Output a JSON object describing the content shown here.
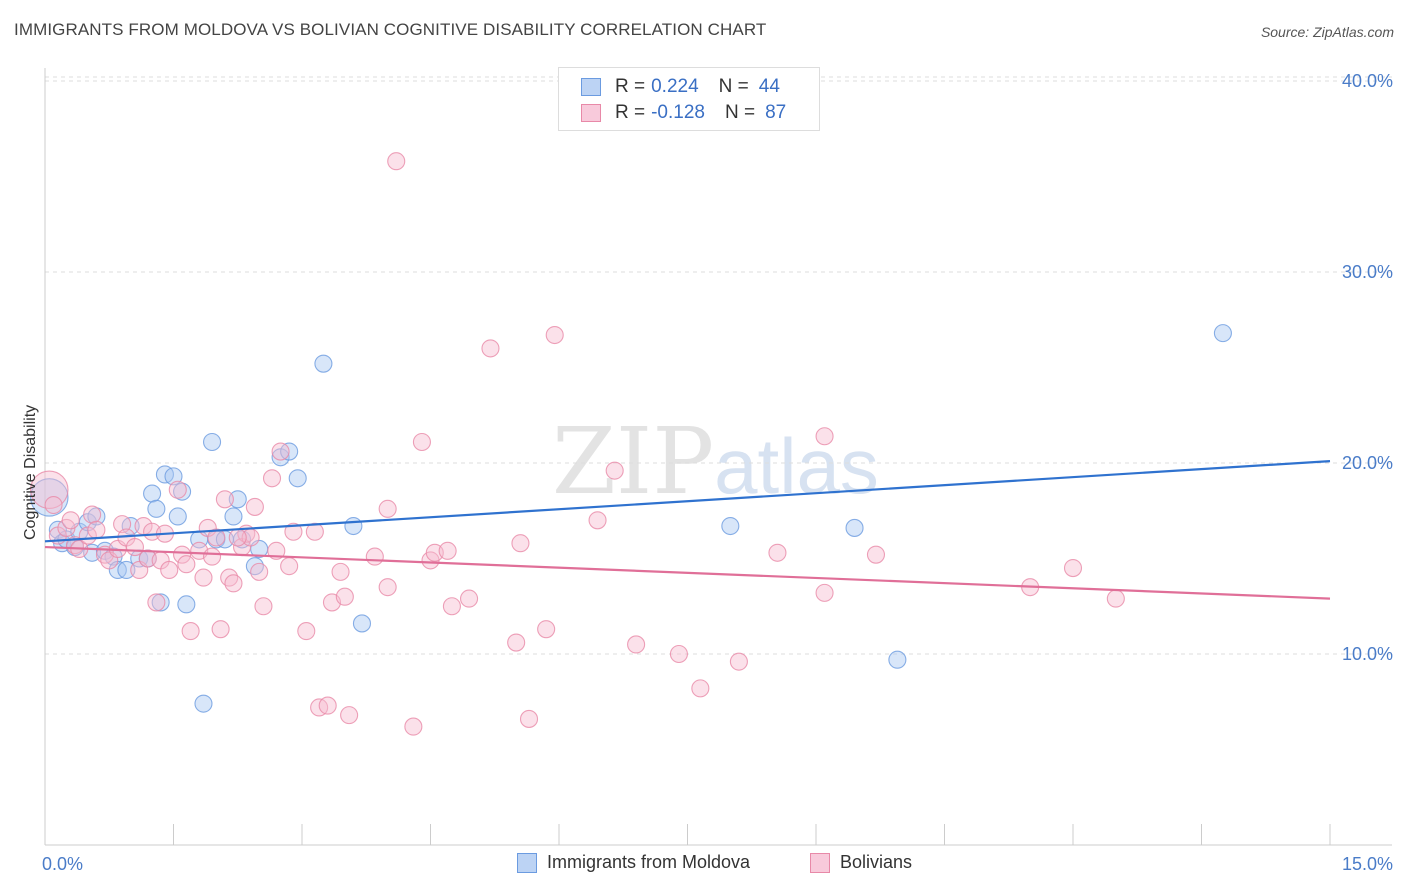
{
  "title": "IMMIGRANTS FROM MOLDOVA VS BOLIVIAN COGNITIVE DISABILITY CORRELATION CHART",
  "source": "Source: ZipAtlas.com",
  "watermark": {
    "zip": "ZIP",
    "atlas": "atlas"
  },
  "legend": {
    "rows": [
      {
        "r_label": "R =",
        "r_value": "0.224",
        "n_label": "N =",
        "n_value": "44"
      },
      {
        "r_label": "R =",
        "r_value": "-0.128",
        "n_label": "N =",
        "n_value": "87"
      }
    ]
  },
  "bottom_legend": [
    "Immigrants from Moldova",
    "Bolivians"
  ],
  "colors": {
    "moldova_fill": "#a9c8f2",
    "moldova_stroke": "#6b9be0",
    "moldova_line": "#2f72cf",
    "bolivian_fill": "#f6bdd0",
    "bolivian_stroke": "#e889a8",
    "bolivian_line": "#e06f98",
    "tick_label": "#4a7cc8",
    "grid": "#dddddd"
  },
  "chart_data": {
    "type": "scatter",
    "xlabel": "",
    "ylabel": "Cognitive Disability",
    "xlim": [
      0,
      15
    ],
    "ylim": [
      0,
      41
    ],
    "x_tick_labels": [
      {
        "value": 0,
        "label": "0.0%"
      },
      {
        "value": 15,
        "label": "15.0%"
      }
    ],
    "y_tick_labels": [
      {
        "value": 10,
        "label": "10.0%"
      },
      {
        "value": 20,
        "label": "20.0%"
      },
      {
        "value": 30,
        "label": "30.0%"
      },
      {
        "value": 40,
        "label": "40.0%"
      }
    ],
    "grid": true,
    "series": [
      {
        "name": "Immigrants from Moldova",
        "trend": {
          "x0": 0,
          "y0": 15.9,
          "x1": 15,
          "y1": 20.1
        },
        "points": [
          [
            0.05,
            18.2,
            2.2
          ],
          [
            0.15,
            16.5,
            1
          ],
          [
            0.2,
            15.8,
            1
          ],
          [
            0.25,
            16.0,
            1
          ],
          [
            0.35,
            15.6,
            1
          ],
          [
            0.4,
            16.4,
            1
          ],
          [
            0.5,
            16.9,
            1
          ],
          [
            0.55,
            15.3,
            1
          ],
          [
            0.6,
            17.2,
            1
          ],
          [
            0.7,
            15.4,
            1
          ],
          [
            0.8,
            15.1,
            1
          ],
          [
            0.85,
            14.4,
            1
          ],
          [
            0.95,
            14.4,
            1
          ],
          [
            1.0,
            16.7,
            1
          ],
          [
            1.1,
            15.0,
            1
          ],
          [
            1.2,
            15.0,
            1
          ],
          [
            1.25,
            18.4,
            1
          ],
          [
            1.3,
            17.6,
            1
          ],
          [
            1.35,
            12.7,
            1
          ],
          [
            1.4,
            19.4,
            1
          ],
          [
            1.5,
            19.3,
            1
          ],
          [
            1.55,
            17.2,
            1
          ],
          [
            1.6,
            18.5,
            1
          ],
          [
            1.65,
            12.6,
            1
          ],
          [
            1.8,
            16.0,
            1
          ],
          [
            1.85,
            7.4,
            1
          ],
          [
            1.95,
            21.1,
            1
          ],
          [
            2.0,
            16.0,
            1
          ],
          [
            2.1,
            16.0,
            1
          ],
          [
            2.2,
            17.2,
            1
          ],
          [
            2.25,
            18.1,
            1
          ],
          [
            2.45,
            14.6,
            1
          ],
          [
            2.5,
            15.5,
            1
          ],
          [
            2.75,
            20.3,
            1
          ],
          [
            2.85,
            20.6,
            1
          ],
          [
            2.95,
            19.2,
            1
          ],
          [
            3.25,
            25.2,
            1
          ],
          [
            3.6,
            16.7,
            1
          ],
          [
            3.7,
            11.6,
            1
          ],
          [
            8.0,
            16.7,
            1
          ],
          [
            9.45,
            16.6,
            1
          ],
          [
            9.95,
            9.7,
            1
          ],
          [
            13.75,
            26.8,
            1
          ],
          [
            2.3,
            16.0,
            1
          ]
        ]
      },
      {
        "name": "Bolivians",
        "trend": {
          "x0": 0,
          "y0": 15.6,
          "x1": 15,
          "y1": 12.9
        },
        "points": [
          [
            0.05,
            18.6,
            2.2
          ],
          [
            0.1,
            17.8,
            1
          ],
          [
            0.15,
            16.2,
            1
          ],
          [
            0.25,
            16.6,
            1
          ],
          [
            0.3,
            17.0,
            1
          ],
          [
            0.35,
            15.7,
            1
          ],
          [
            0.4,
            15.5,
            1
          ],
          [
            0.5,
            16.2,
            1
          ],
          [
            0.55,
            17.3,
            1
          ],
          [
            0.6,
            16.5,
            1
          ],
          [
            0.7,
            15.2,
            1
          ],
          [
            0.75,
            14.9,
            1
          ],
          [
            0.85,
            15.5,
            1
          ],
          [
            0.9,
            16.8,
            1
          ],
          [
            0.95,
            16.1,
            1
          ],
          [
            1.05,
            15.6,
            1
          ],
          [
            1.1,
            14.4,
            1
          ],
          [
            1.15,
            16.7,
            1
          ],
          [
            1.2,
            15.0,
            1
          ],
          [
            1.25,
            16.4,
            1
          ],
          [
            1.3,
            12.7,
            1
          ],
          [
            1.35,
            14.9,
            1
          ],
          [
            1.4,
            16.3,
            1
          ],
          [
            1.45,
            14.4,
            1
          ],
          [
            1.55,
            18.6,
            1
          ],
          [
            1.6,
            15.2,
            1
          ],
          [
            1.65,
            14.7,
            1
          ],
          [
            1.7,
            11.2,
            1
          ],
          [
            1.8,
            15.4,
            1
          ],
          [
            1.85,
            14.0,
            1
          ],
          [
            1.9,
            16.6,
            1
          ],
          [
            1.95,
            15.1,
            1
          ],
          [
            2.0,
            16.1,
            1
          ],
          [
            2.05,
            11.3,
            1
          ],
          [
            2.1,
            18.1,
            1
          ],
          [
            2.15,
            14.0,
            1
          ],
          [
            2.2,
            13.7,
            1
          ],
          [
            2.3,
            15.6,
            1
          ],
          [
            2.35,
            16.3,
            1
          ],
          [
            2.4,
            16.1,
            1
          ],
          [
            2.45,
            17.7,
            1
          ],
          [
            2.5,
            14.3,
            1
          ],
          [
            2.55,
            12.5,
            1
          ],
          [
            2.65,
            19.2,
            1
          ],
          [
            2.7,
            15.4,
            1
          ],
          [
            2.75,
            20.6,
            1
          ],
          [
            2.85,
            14.6,
            1
          ],
          [
            2.9,
            16.4,
            1
          ],
          [
            3.05,
            11.2,
            1
          ],
          [
            3.15,
            16.4,
            1
          ],
          [
            3.2,
            7.2,
            1
          ],
          [
            3.3,
            7.3,
            1
          ],
          [
            3.35,
            12.7,
            1
          ],
          [
            3.45,
            14.3,
            1
          ],
          [
            3.5,
            13.0,
            1
          ],
          [
            3.55,
            6.8,
            1
          ],
          [
            3.85,
            15.1,
            1
          ],
          [
            4.0,
            13.5,
            1
          ],
          [
            4.0,
            17.6,
            1
          ],
          [
            4.1,
            35.8,
            1
          ],
          [
            4.3,
            6.2,
            1
          ],
          [
            4.4,
            21.1,
            1
          ],
          [
            4.5,
            14.9,
            1
          ],
          [
            4.55,
            15.3,
            1
          ],
          [
            4.7,
            15.4,
            1
          ],
          [
            4.75,
            12.5,
            1
          ],
          [
            4.95,
            12.9,
            1
          ],
          [
            5.2,
            26.0,
            1
          ],
          [
            5.5,
            10.6,
            1
          ],
          [
            5.55,
            15.8,
            1
          ],
          [
            5.65,
            6.6,
            1
          ],
          [
            5.85,
            11.3,
            1
          ],
          [
            5.95,
            26.7,
            1
          ],
          [
            6.45,
            17.0,
            1
          ],
          [
            6.65,
            19.6,
            1
          ],
          [
            6.9,
            10.5,
            1
          ],
          [
            7.4,
            10.0,
            1
          ],
          [
            7.65,
            8.2,
            1
          ],
          [
            8.1,
            9.6,
            1
          ],
          [
            8.55,
            15.3,
            1
          ],
          [
            9.1,
            13.2,
            1
          ],
          [
            9.1,
            21.4,
            1
          ],
          [
            9.7,
            15.2,
            1
          ],
          [
            11.5,
            13.5,
            1
          ],
          [
            12.0,
            14.5,
            1
          ],
          [
            12.5,
            12.9,
            1
          ],
          [
            2.25,
            16.1,
            1
          ]
        ]
      }
    ]
  }
}
